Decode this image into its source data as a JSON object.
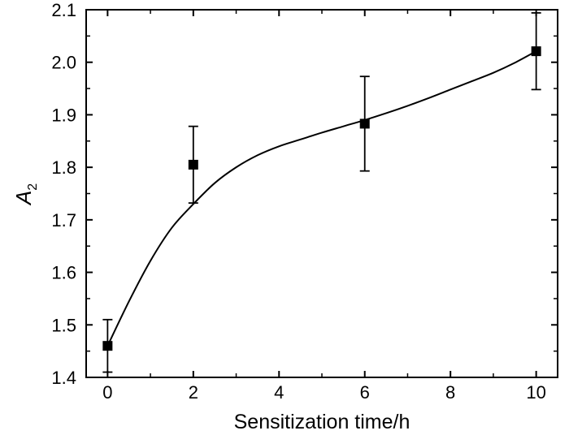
{
  "chart_data": {
    "type": "scatter",
    "xlabel": "Sensitization time/h",
    "ylabel_main": "A",
    "ylabel_sub": "2",
    "xlim": [
      -0.5,
      10.5
    ],
    "ylim": [
      1.4,
      2.1
    ],
    "x_ticks": [
      0,
      2,
      4,
      6,
      8,
      10
    ],
    "y_ticks": [
      1.4,
      1.5,
      1.6,
      1.7,
      1.8,
      1.9,
      2.0,
      2.1
    ],
    "x_tick_labels": [
      "0",
      "2",
      "4",
      "6",
      "8",
      "10"
    ],
    "y_tick_labels": [
      "1.4",
      "1.5",
      "1.6",
      "1.7",
      "1.8",
      "1.9",
      "2.0",
      "2.1"
    ],
    "grid": false,
    "series": [
      {
        "marker": "square",
        "color": "#000000",
        "points": [
          {
            "x": 0,
            "y": 1.46,
            "err": 0.05
          },
          {
            "x": 2,
            "y": 1.805,
            "err": 0.073
          },
          {
            "x": 6,
            "y": 1.883,
            "err": 0.09
          },
          {
            "x": 10,
            "y": 2.021,
            "err": 0.073
          }
        ]
      }
    ],
    "fit_curve": {
      "color": "#000000",
      "x": [
        0,
        0.5,
        1,
        1.5,
        2,
        2.5,
        3,
        3.5,
        4,
        4.5,
        5,
        5.5,
        6,
        6.5,
        7,
        7.5,
        8,
        8.5,
        9,
        9.5,
        10
      ],
      "y": [
        1.46,
        1.545,
        1.622,
        1.685,
        1.73,
        1.77,
        1.8,
        1.823,
        1.84,
        1.853,
        1.866,
        1.878,
        1.89,
        1.903,
        1.917,
        1.932,
        1.948,
        1.964,
        1.98,
        1.999,
        2.021
      ]
    }
  }
}
